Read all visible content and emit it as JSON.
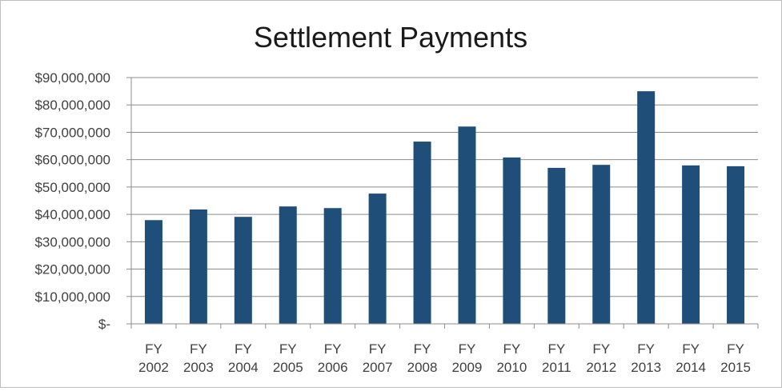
{
  "chart_data": {
    "type": "bar",
    "title": "Settlement Payments",
    "xlabel": "",
    "ylabel": "",
    "categories": [
      [
        "FY",
        "2002"
      ],
      [
        "FY",
        "2003"
      ],
      [
        "FY",
        "2004"
      ],
      [
        "FY",
        "2005"
      ],
      [
        "FY",
        "2006"
      ],
      [
        "FY",
        "2007"
      ],
      [
        "FY",
        "2008"
      ],
      [
        "FY",
        "2009"
      ],
      [
        "FY",
        "2010"
      ],
      [
        "FY",
        "2011"
      ],
      [
        "FY",
        "2012"
      ],
      [
        "FY",
        "2013"
      ],
      [
        "FY",
        "2014"
      ],
      [
        "FY",
        "2015"
      ]
    ],
    "values": [
      37900000,
      41800000,
      39100000,
      42900000,
      42300000,
      47600000,
      66600000,
      72100000,
      60800000,
      57000000,
      58100000,
      85000000,
      57900000,
      57600000
    ],
    "ylim": [
      0,
      90000000
    ],
    "y_ticks": [
      {
        "value": 0,
        "label": "$-"
      },
      {
        "value": 10000000,
        "label": "$10,000,000"
      },
      {
        "value": 20000000,
        "label": "$20,000,000"
      },
      {
        "value": 30000000,
        "label": "$30,000,000"
      },
      {
        "value": 40000000,
        "label": "$40,000,000"
      },
      {
        "value": 50000000,
        "label": "$50,000,000"
      },
      {
        "value": 60000000,
        "label": "$60,000,000"
      },
      {
        "value": 70000000,
        "label": "$70,000,000"
      },
      {
        "value": 80000000,
        "label": "$80,000,000"
      },
      {
        "value": 90000000,
        "label": "$90,000,000"
      }
    ],
    "grid": true,
    "legend": "none",
    "colors": {
      "bar": "#1f4e79",
      "grid": "#8c8c8c",
      "axis": "#8c8c8c"
    }
  }
}
